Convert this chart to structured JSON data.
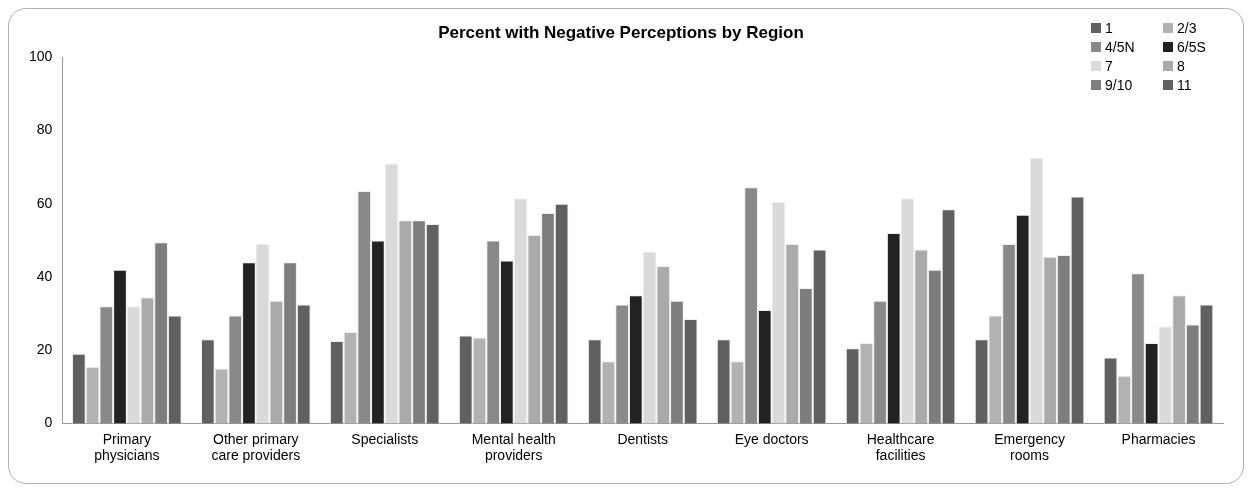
{
  "chart_data": {
    "type": "bar",
    "title": "Percent with Negative Perceptions by Region",
    "categories": [
      "Primary physicians",
      "Other primary care providers",
      "Specialists",
      "Mental health providers",
      "Dentists",
      "Eye doctors",
      "Healthcare facilities",
      "Emergency rooms",
      "Pharmacies"
    ],
    "series": [
      {
        "name": "1",
        "color": "#606060",
        "values": [
          19,
          23,
          22.5,
          24,
          23,
          23,
          20.5,
          23,
          18
        ]
      },
      {
        "name": "2/3",
        "color": "#b2b2b2",
        "values": [
          15.5,
          15,
          25,
          23.5,
          17,
          17,
          22,
          29.5,
          13
        ]
      },
      {
        "name": "4/5N",
        "color": "#898989",
        "values": [
          32,
          29.5,
          63.5,
          50,
          32.5,
          64.5,
          33.5,
          49,
          41
        ]
      },
      {
        "name": "6/5S",
        "color": "#222222",
        "values": [
          42,
          44,
          50,
          44.5,
          35,
          31,
          52,
          57,
          22
        ]
      },
      {
        "name": "7",
        "color": "#dadada",
        "values": [
          32,
          49,
          71,
          61.5,
          47,
          60.5,
          61.5,
          72.5,
          26.5
        ]
      },
      {
        "name": "8",
        "color": "#aaaaaa",
        "values": [
          34.5,
          33.5,
          55.5,
          51.5,
          43,
          49,
          47.5,
          45.5,
          35
        ]
      },
      {
        "name": "9/10",
        "color": "#7d7d7d",
        "values": [
          49.5,
          44,
          55.5,
          57.5,
          33.5,
          37,
          42,
          46,
          27
        ]
      },
      {
        "name": "11",
        "color": "#606060",
        "values": [
          29.5,
          32.5,
          54.5,
          60,
          28.5,
          47.5,
          58.5,
          62,
          32.5
        ]
      }
    ],
    "ylim": [
      0,
      100
    ],
    "yticks": [
      0,
      20,
      40,
      60,
      80,
      100
    ],
    "grid": false,
    "legend": "top right"
  }
}
